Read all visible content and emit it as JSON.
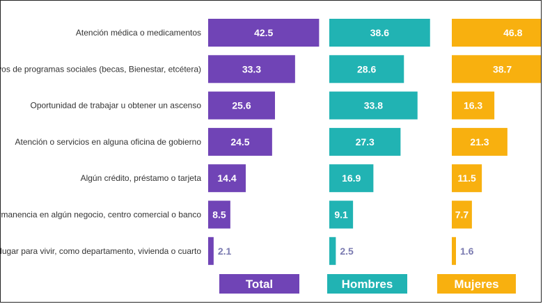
{
  "chart_data": {
    "type": "bar",
    "orientation": "horizontal",
    "layout": "small-multiples",
    "categories": [
      "Atención médica o medicamentos",
      "Apoyos de programas sociales (becas, Bienestar, etcétera)",
      "Oportunidad de trabajar u obtener un ascenso",
      "Atención o servicios en alguna oficina de gobierno",
      "Algún crédito, préstamo o tarjeta",
      "La permanencia en algún negocio, centro comercial o banco",
      "Un lugar para vivir, como departamento, vivienda o cuarto"
    ],
    "series": [
      {
        "name": "Total",
        "color": "#7044b6",
        "values": [
          42.5,
          33.3,
          25.6,
          24.5,
          14.4,
          8.5,
          2.1
        ]
      },
      {
        "name": "Hombres",
        "color": "#21b3b3",
        "values": [
          38.6,
          28.6,
          33.8,
          27.3,
          16.9,
          9.1,
          2.5
        ]
      },
      {
        "name": "Mujeres",
        "color": "#f8b00f",
        "values": [
          46.8,
          38.7,
          16.3,
          21.3,
          11.5,
          7.7,
          1.6
        ]
      }
    ],
    "label_color_outside": "#7a7ab0",
    "title": "",
    "xlabel": "",
    "ylabel": "",
    "grid": false,
    "legend_placement": "bottom"
  }
}
